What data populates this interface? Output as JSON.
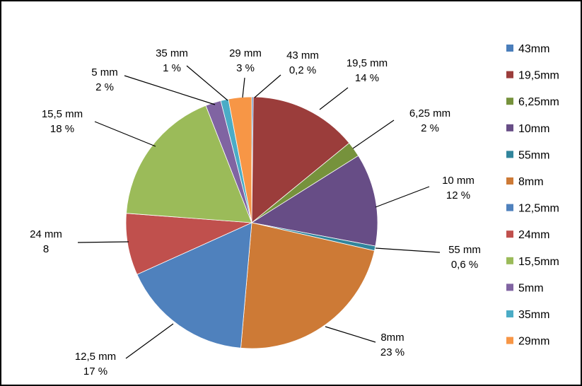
{
  "chart_data": {
    "type": "pie",
    "title": "",
    "slices": [
      {
        "legend": "43mm",
        "label_name": "43 mm",
        "label_value": "0,2 %",
        "value": 0.2,
        "color": "#4a7ebb"
      },
      {
        "legend": "19,5mm",
        "label_name": "19,5 mm",
        "label_value": "14 %",
        "value": 14,
        "color": "#9b3d3b"
      },
      {
        "legend": "6,25mm",
        "label_name": "6,25 mm",
        "label_value": "2 %",
        "value": 2,
        "color": "#76923c"
      },
      {
        "legend": "10mm",
        "label_name": "10 mm",
        "label_value": "12 %",
        "value": 12,
        "color": "#674d86"
      },
      {
        "legend": "55mm",
        "label_name": "55 mm",
        "label_value": "0,6 %",
        "value": 0.6,
        "color": "#31859c"
      },
      {
        "legend": "8mm",
        "label_name": "8mm",
        "label_value": "23 %",
        "value": 23,
        "color": "#cd7a36"
      },
      {
        "legend": "12,5mm",
        "label_name": "12,5 mm",
        "label_value": "17 %",
        "value": 17,
        "color": "#4f81bd"
      },
      {
        "legend": "24mm",
        "label_name": "24 mm",
        "label_value": "8",
        "value": 8,
        "color": "#c0504d"
      },
      {
        "legend": "15,5mm",
        "label_name": "15,5 mm",
        "label_value": "18 %",
        "value": 18,
        "color": "#9bbb59"
      },
      {
        "legend": "5mm",
        "label_name": "5 mm",
        "label_value": "2 %",
        "value": 2,
        "color": "#8064a2"
      },
      {
        "legend": "35mm",
        "label_name": "35 mm",
        "label_value": "1 %",
        "value": 1,
        "color": "#4bacc6"
      },
      {
        "legend": "29mm",
        "label_name": "29 mm",
        "label_value": "3 %",
        "value": 3,
        "color": "#f79646"
      }
    ],
    "legend_position": "right"
  }
}
